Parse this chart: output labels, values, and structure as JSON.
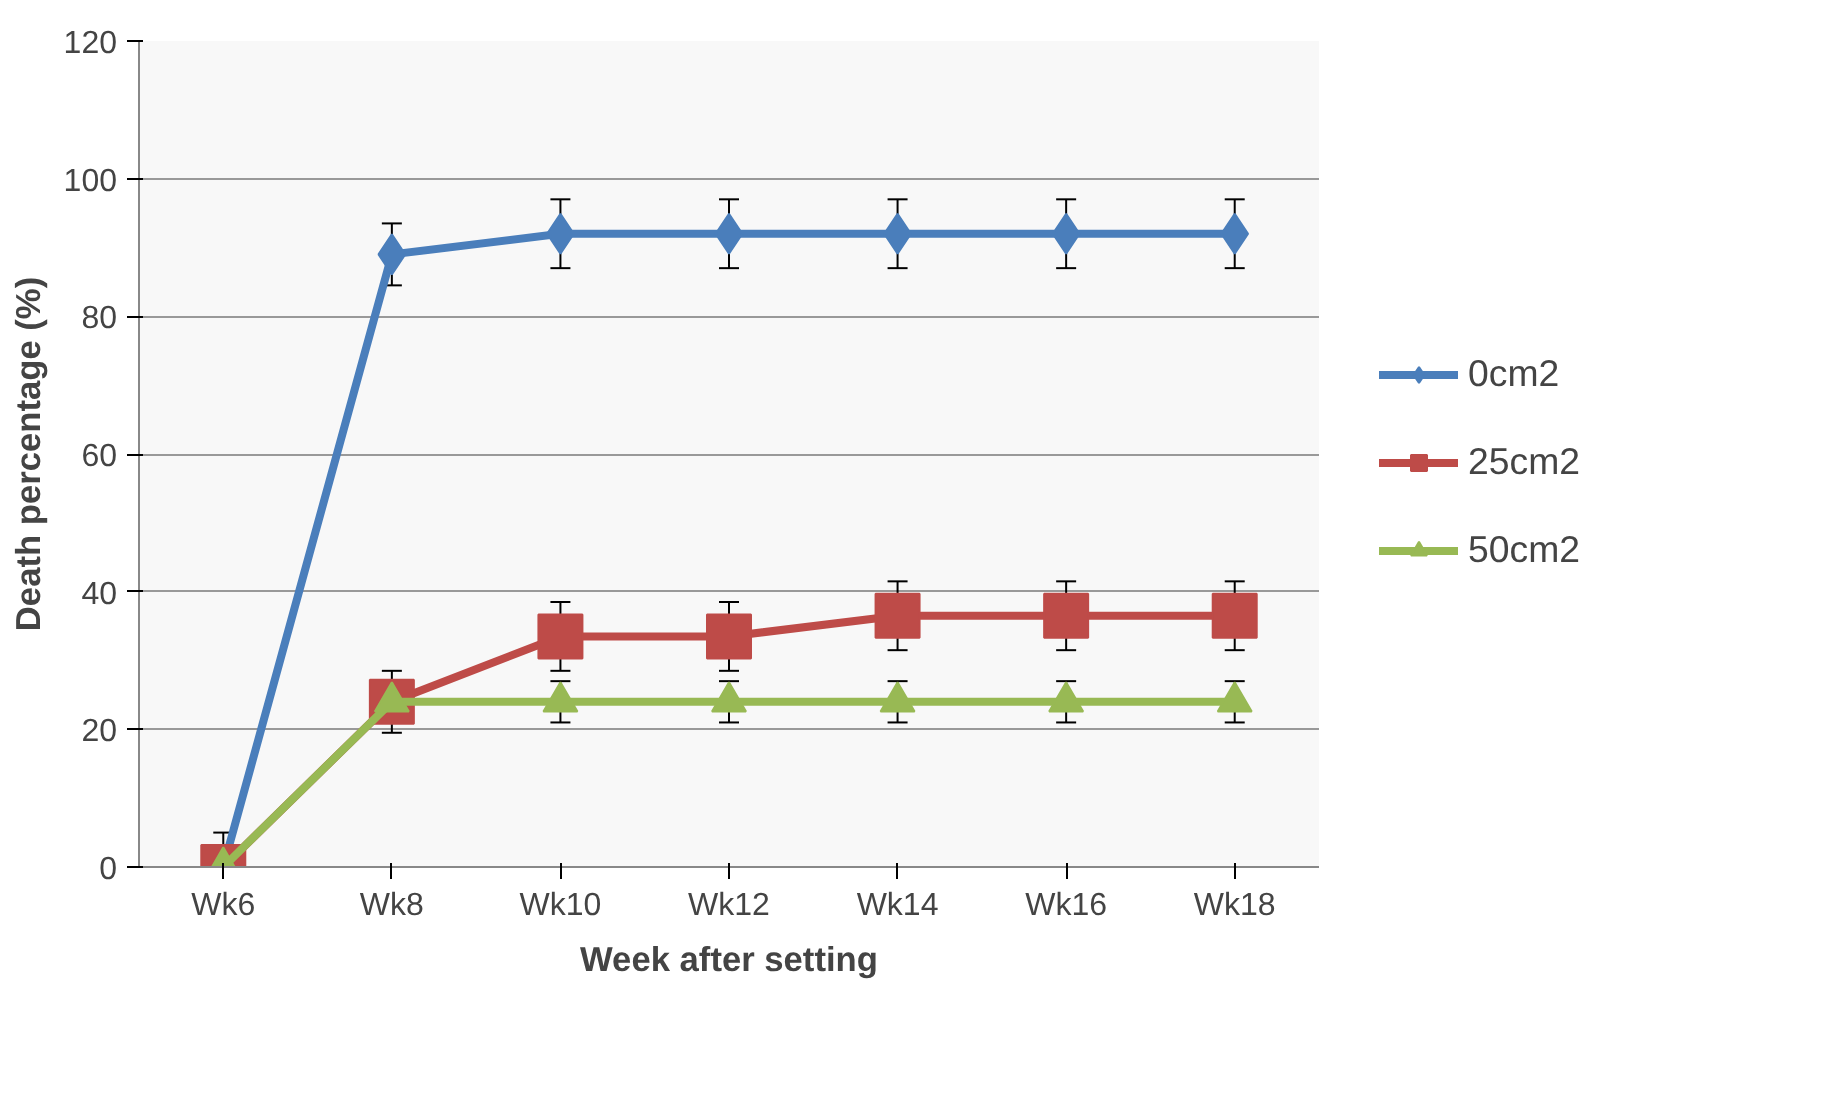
{
  "chart_data": {
    "type": "line",
    "xlabel": "Week after setting",
    "ylabel": "Death percentage (%)",
    "categories": [
      "Wk6",
      "Wk8",
      "Wk10",
      "Wk12",
      "Wk14",
      "Wk16",
      "Wk18"
    ],
    "ylim": [
      0,
      120
    ],
    "yticks": [
      0,
      20,
      40,
      60,
      80,
      100,
      120
    ],
    "grid": "y",
    "legend": "right",
    "series": [
      {
        "name": "0cm2",
        "color": "#4a7ebb",
        "marker": "diamond",
        "values": [
          0,
          89,
          92,
          92,
          92,
          92,
          92
        ],
        "errors": [
          5,
          4.5,
          5,
          5,
          5,
          5,
          5
        ]
      },
      {
        "name": "25cm2",
        "color": "#be4b48",
        "marker": "square",
        "values": [
          0,
          24,
          33.5,
          33.5,
          36.5,
          36.5,
          36.5
        ],
        "errors": [
          null,
          4.5,
          5,
          5,
          5,
          5,
          5
        ]
      },
      {
        "name": "50cm2",
        "color": "#98b954",
        "marker": "triangle",
        "values": [
          0,
          24,
          24,
          24,
          24,
          24,
          24
        ],
        "errors": [
          null,
          3,
          3,
          3,
          3,
          3,
          3
        ]
      }
    ]
  }
}
